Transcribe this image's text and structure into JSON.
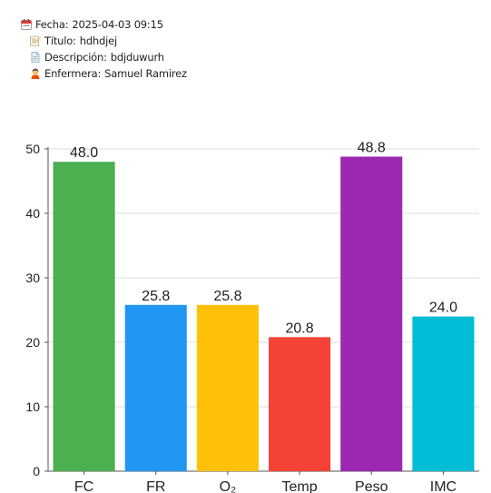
{
  "record": {
    "fecha": {
      "icon": "calendar-icon",
      "label": "Fecha:",
      "value": "2025-04-03 09:15"
    },
    "titulo": {
      "icon": "memo-icon",
      "label": "Título:",
      "value": "hdhdjej"
    },
    "descripcion": {
      "icon": "document-icon",
      "label": "Descripción:",
      "value": "bdjduwurh"
    },
    "enfermera": {
      "icon": "nurse-icon",
      "label": "Enfermera:",
      "value": "Samuel Ramirez"
    }
  },
  "chart_data": {
    "type": "bar",
    "categories": [
      "FC",
      "FR",
      "O₂",
      "Temp",
      "Peso",
      "IMC"
    ],
    "values": [
      48.0,
      25.8,
      25.8,
      20.8,
      48.8,
      24.0
    ],
    "value_labels": [
      "48.0",
      "25.8",
      "25.8",
      "20.8",
      "48.8",
      "24.0"
    ],
    "colors": [
      "#4caf50",
      "#2196f3",
      "#ffc107",
      "#f44336",
      "#9c27b0",
      "#00bcd4"
    ],
    "yticks": [
      "0",
      "10",
      "20",
      "30",
      "40",
      "50"
    ],
    "ylim": [
      0,
      50
    ],
    "grid": true
  }
}
